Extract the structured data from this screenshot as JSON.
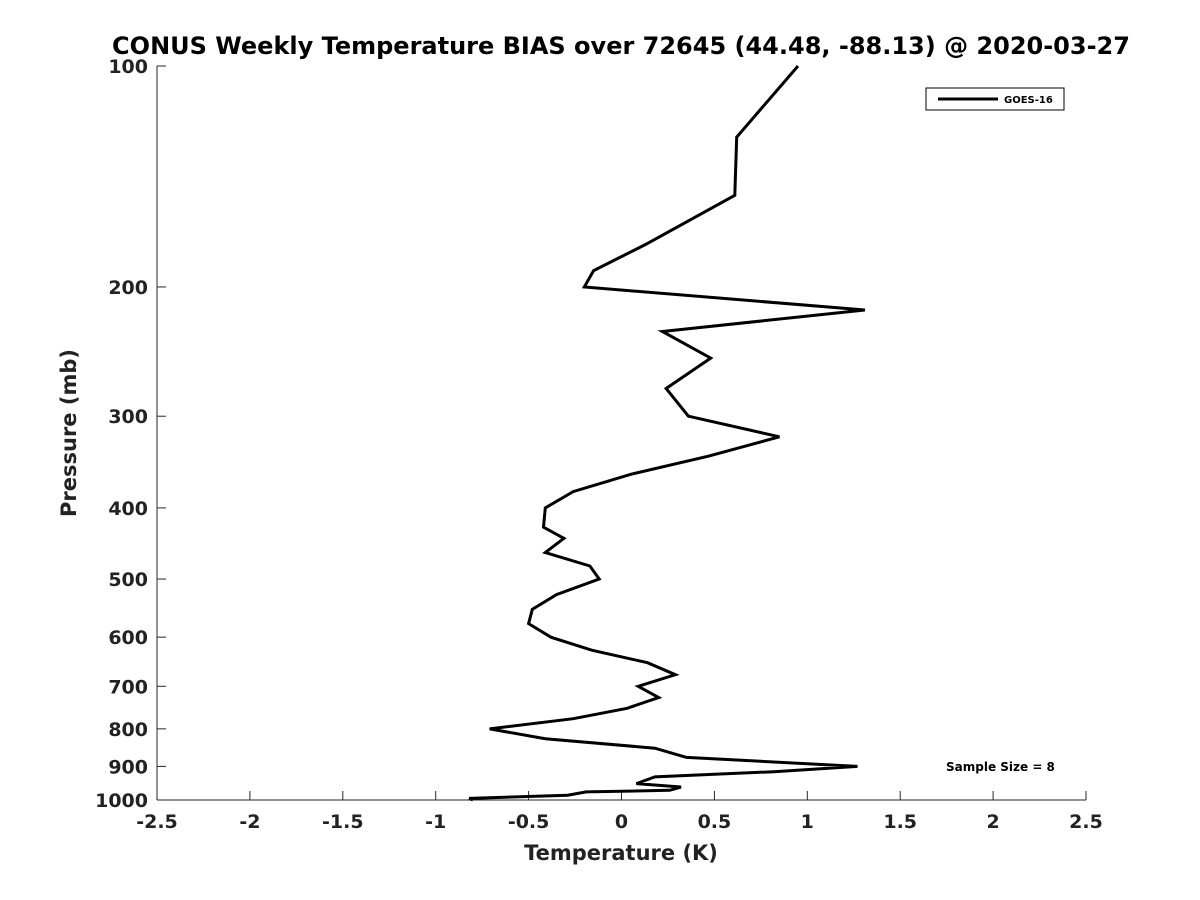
{
  "chart_data": {
    "type": "line",
    "title": "CONUS Weekly Temperature BIAS over 72645 (44.48, -88.13) @ 2020-03-27",
    "xlabel": "Temperature (K)",
    "ylabel": "Pressure (mb)",
    "xlim": [
      -2.5,
      2.5
    ],
    "ylim": [
      1000,
      100
    ],
    "yscale": "log",
    "xticks": [
      -2.5,
      -2,
      -1.5,
      -1,
      -0.5,
      0,
      0.5,
      1,
      1.5,
      2,
      2.5
    ],
    "xtick_labels": [
      "-2.5",
      "-2",
      "-1.5",
      "-1",
      "-0.5",
      "0",
      "0.5",
      "1",
      "1.5",
      "2",
      "2.5"
    ],
    "yticks": [
      100,
      200,
      300,
      400,
      500,
      600,
      700,
      800,
      900,
      1000
    ],
    "ytick_labels": [
      "100",
      "200",
      "300",
      "400",
      "500",
      "600",
      "700",
      "800",
      "900",
      "1000"
    ],
    "grid": false,
    "legend": {
      "position": "top-right"
    },
    "annotation": "Sample Size = 8",
    "series": [
      {
        "name": "GOES-16",
        "color": "#000000",
        "points": [
          {
            "t": 0.95,
            "p": 100
          },
          {
            "t": 0.62,
            "p": 125
          },
          {
            "t": 0.61,
            "p": 150
          },
          {
            "t": 0.13,
            "p": 175
          },
          {
            "t": -0.15,
            "p": 190
          },
          {
            "t": -0.2,
            "p": 200
          },
          {
            "t": 1.31,
            "p": 215
          },
          {
            "t": 0.22,
            "p": 230
          },
          {
            "t": 0.48,
            "p": 250
          },
          {
            "t": 0.24,
            "p": 275
          },
          {
            "t": 0.36,
            "p": 300
          },
          {
            "t": 0.85,
            "p": 320
          },
          {
            "t": 0.47,
            "p": 340
          },
          {
            "t": 0.05,
            "p": 360
          },
          {
            "t": -0.26,
            "p": 380
          },
          {
            "t": -0.41,
            "p": 400
          },
          {
            "t": -0.42,
            "p": 425
          },
          {
            "t": -0.31,
            "p": 440
          },
          {
            "t": -0.41,
            "p": 460
          },
          {
            "t": -0.17,
            "p": 480
          },
          {
            "t": -0.12,
            "p": 500
          },
          {
            "t": -0.35,
            "p": 525
          },
          {
            "t": -0.48,
            "p": 550
          },
          {
            "t": -0.5,
            "p": 575
          },
          {
            "t": -0.38,
            "p": 600
          },
          {
            "t": -0.16,
            "p": 625
          },
          {
            "t": 0.14,
            "p": 650
          },
          {
            "t": 0.29,
            "p": 675
          },
          {
            "t": 0.09,
            "p": 700
          },
          {
            "t": 0.2,
            "p": 725
          },
          {
            "t": 0.03,
            "p": 750
          },
          {
            "t": -0.26,
            "p": 775
          },
          {
            "t": -0.71,
            "p": 800
          },
          {
            "t": -0.41,
            "p": 825
          },
          {
            "t": 0.18,
            "p": 850
          },
          {
            "t": 0.35,
            "p": 875
          },
          {
            "t": 1.27,
            "p": 900
          },
          {
            "t": 0.82,
            "p": 915
          },
          {
            "t": 0.18,
            "p": 930
          },
          {
            "t": 0.08,
            "p": 950
          },
          {
            "t": 0.32,
            "p": 960
          },
          {
            "t": 0.26,
            "p": 970
          },
          {
            "t": -0.19,
            "p": 975
          },
          {
            "t": -0.29,
            "p": 985
          },
          {
            "t": -0.82,
            "p": 995
          },
          {
            "t": -0.8,
            "p": 1000
          }
        ]
      }
    ]
  }
}
